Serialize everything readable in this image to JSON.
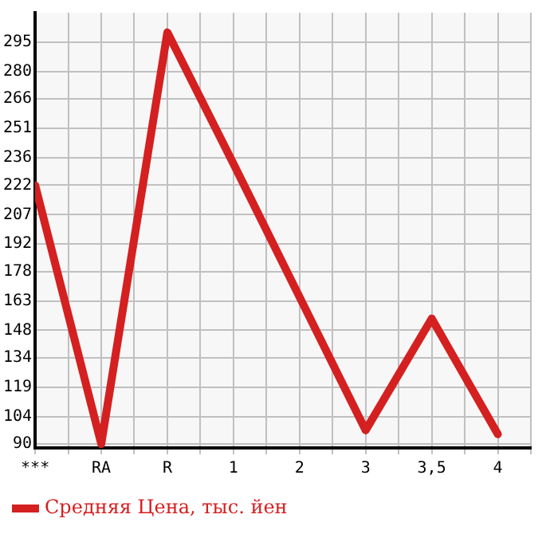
{
  "chart_data": {
    "type": "line",
    "categories": [
      "***",
      "RA",
      "R",
      "1",
      "2",
      "3",
      "3,5",
      "4"
    ],
    "series": [
      {
        "name": "Средняя Цена, тыс. йен",
        "color": "#d42020",
        "values": [
          222,
          90,
          300,
          233,
          165,
          97,
          154,
          95
        ]
      }
    ],
    "ylim": [
      88,
      310
    ],
    "yticks": [
      90,
      104,
      119,
      134,
      148,
      163,
      178,
      192,
      207,
      222,
      236,
      251,
      266,
      280,
      295
    ],
    "grid": true,
    "legend": "bottom left",
    "marker": "none",
    "line_style": "solid"
  }
}
